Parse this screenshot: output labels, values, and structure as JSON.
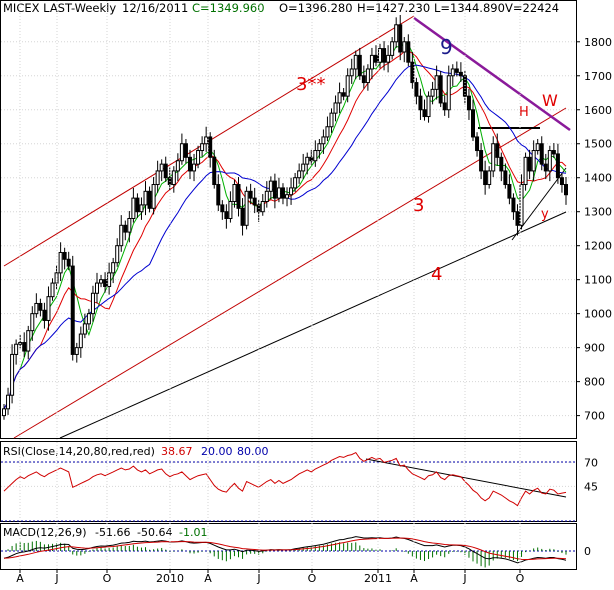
{
  "header": {
    "symbol_period": "MICEX LAST-Weekly",
    "date": "12/16/2011",
    "close": "C=1349.960",
    "open": "O=1396.280",
    "high": "H=1427.230",
    "low": "L=1344.890",
    "volume": "V=22424"
  },
  "rsi_label": {
    "text": "RSI(Close,14,20,80,red,red)",
    "value": "38.67",
    "lower": "20.00",
    "upper": "80.00"
  },
  "macd_label": {
    "text": "MACD(12,26,9)",
    "macd": "-51.66",
    "signal": "-50.64",
    "hist": "-1.01"
  },
  "annotations": {
    "wave_3_stars": "3**",
    "wave_3": "3",
    "wave_4": "4",
    "wave_9": "9",
    "wave_w": "W",
    "wave_h": "H",
    "wave_y": "y"
  },
  "colors": {
    "background": "#ffffff",
    "grid": "#d6d6d6",
    "candle": "#000000",
    "ma_green": "#00b000",
    "ma_red": "#e00000",
    "ma_blue": "#0000d0",
    "channel_red": "#c00000",
    "trend_purple": "#8a1a9a",
    "rsi_line": "#d00000",
    "macd_signal": "#d00000",
    "macd_hist": "#007000",
    "ref_line": "#0000aa"
  },
  "chart_data": [
    {
      "type": "candlestick",
      "title": "MICEX LAST-Weekly",
      "y_ticks": [
        700,
        800,
        900,
        1000,
        1100,
        1200,
        1300,
        1400,
        1500,
        1600,
        1700,
        1800
      ],
      "ylim": [
        640,
        1870
      ],
      "x_ticks": [
        "A",
        "J",
        "O",
        "2010",
        "A",
        "J",
        "O",
        "2011",
        "A",
        "J",
        "O"
      ],
      "closes": [
        720,
        760,
        880,
        910,
        915,
        890,
        950,
        1000,
        1030,
        1010,
        980,
        1050,
        1090,
        1120,
        1180,
        1160,
        1140,
        880,
        900,
        940,
        970,
        1000,
        1060,
        1090,
        1100,
        1080,
        1120,
        1150,
        1200,
        1260,
        1240,
        1280,
        1340,
        1300,
        1320,
        1360,
        1310,
        1380,
        1420,
        1440,
        1400,
        1380,
        1420,
        1450,
        1500,
        1460,
        1420,
        1440,
        1480,
        1500,
        1520,
        1460,
        1380,
        1320,
        1300,
        1280,
        1330,
        1380,
        1310,
        1260,
        1360,
        1340,
        1320,
        1300,
        1330,
        1360,
        1390,
        1340,
        1370,
        1340,
        1350,
        1370,
        1400,
        1420,
        1440,
        1460,
        1450,
        1480,
        1500,
        1520,
        1550,
        1590,
        1620,
        1650,
        1640,
        1700,
        1720,
        1760,
        1700,
        1680,
        1720,
        1760,
        1740,
        1780,
        1740,
        1760,
        1800,
        1850,
        1770,
        1800,
        1740,
        1680,
        1640,
        1600,
        1580,
        1640,
        1660,
        1700,
        1620,
        1600,
        1700,
        1720,
        1710,
        1700,
        1640,
        1600,
        1520,
        1480,
        1420,
        1380,
        1420,
        1500,
        1460,
        1420,
        1380,
        1340,
        1300,
        1260,
        1380,
        1460,
        1420,
        1480,
        1500,
        1440,
        1420,
        1480,
        1470,
        1400,
        1380,
        1350
      ]
    },
    {
      "type": "line",
      "title": "RSI(Close,14,20,80,red,red)",
      "y_ticks": [
        45,
        70
      ],
      "ylim": [
        10,
        90
      ],
      "reference_levels": [
        20,
        80
      ],
      "values": [
        40,
        44,
        48,
        52,
        55,
        53,
        56,
        58,
        60,
        57,
        55,
        58,
        60,
        62,
        64,
        62,
        60,
        44,
        46,
        48,
        50,
        52,
        55,
        57,
        58,
        56,
        58,
        60,
        62,
        64,
        62,
        63,
        66,
        62,
        60,
        62,
        58,
        60,
        62,
        63,
        58,
        55,
        57,
        58,
        60,
        56,
        52,
        54,
        56,
        57,
        58,
        52,
        46,
        42,
        40,
        39,
        44,
        48,
        43,
        40,
        50,
        48,
        46,
        44,
        47,
        50,
        52,
        48,
        51,
        48,
        50,
        52,
        55,
        58,
        60,
        62,
        60,
        63,
        65,
        67,
        69,
        72,
        74,
        76,
        75,
        77,
        78,
        80,
        74,
        71,
        73,
        75,
        73,
        74,
        70,
        71,
        72,
        74,
        66,
        67,
        62,
        58,
        56,
        54,
        52,
        56,
        57,
        60,
        54,
        52,
        56,
        57,
        56,
        55,
        50,
        46,
        41,
        38,
        33,
        30,
        33,
        40,
        38,
        36,
        33,
        30,
        28,
        25,
        33,
        40,
        37,
        41,
        43,
        38,
        37,
        42,
        41,
        37,
        38,
        38.67
      ]
    },
    {
      "type": "line",
      "title": "MACD(12,26,9)",
      "y_ticks": [
        0
      ],
      "series": [
        {
          "name": "MACD",
          "values": [
            -40,
            -35,
            -25,
            -15,
            -8,
            -5,
            0,
            8,
            15,
            18,
            16,
            20,
            25,
            30,
            36,
            38,
            36,
            15,
            10,
            8,
            10,
            14,
            20,
            25,
            28,
            27,
            30,
            33,
            38,
            44,
            45,
            48,
            54,
            52,
            52,
            55,
            50,
            52,
            55,
            58,
            55,
            50,
            50,
            52,
            56,
            52,
            46,
            44,
            45,
            47,
            48,
            42,
            32,
            22,
            14,
            6,
            6,
            10,
            4,
            -4,
            4,
            4,
            2,
            -2,
            0,
            4,
            8,
            6,
            8,
            6,
            6,
            8,
            12,
            16,
            20,
            24,
            26,
            30,
            34,
            38,
            44,
            50,
            56,
            62,
            64,
            70,
            74,
            80,
            76,
            72,
            72,
            74,
            72,
            74,
            70,
            70,
            72,
            78,
            72,
            70,
            64,
            55,
            46,
            38,
            30,
            30,
            30,
            34,
            28,
            22,
            28,
            32,
            32,
            30,
            22,
            12,
            -2,
            -14,
            -28,
            -40,
            -44,
            -38,
            -38,
            -40,
            -44,
            -50,
            -58,
            -66,
            -60,
            -50,
            -46,
            -40,
            -36,
            -38,
            -40,
            -36,
            -36,
            -42,
            -46,
            -51.66
          ]
        }
      ]
    }
  ]
}
